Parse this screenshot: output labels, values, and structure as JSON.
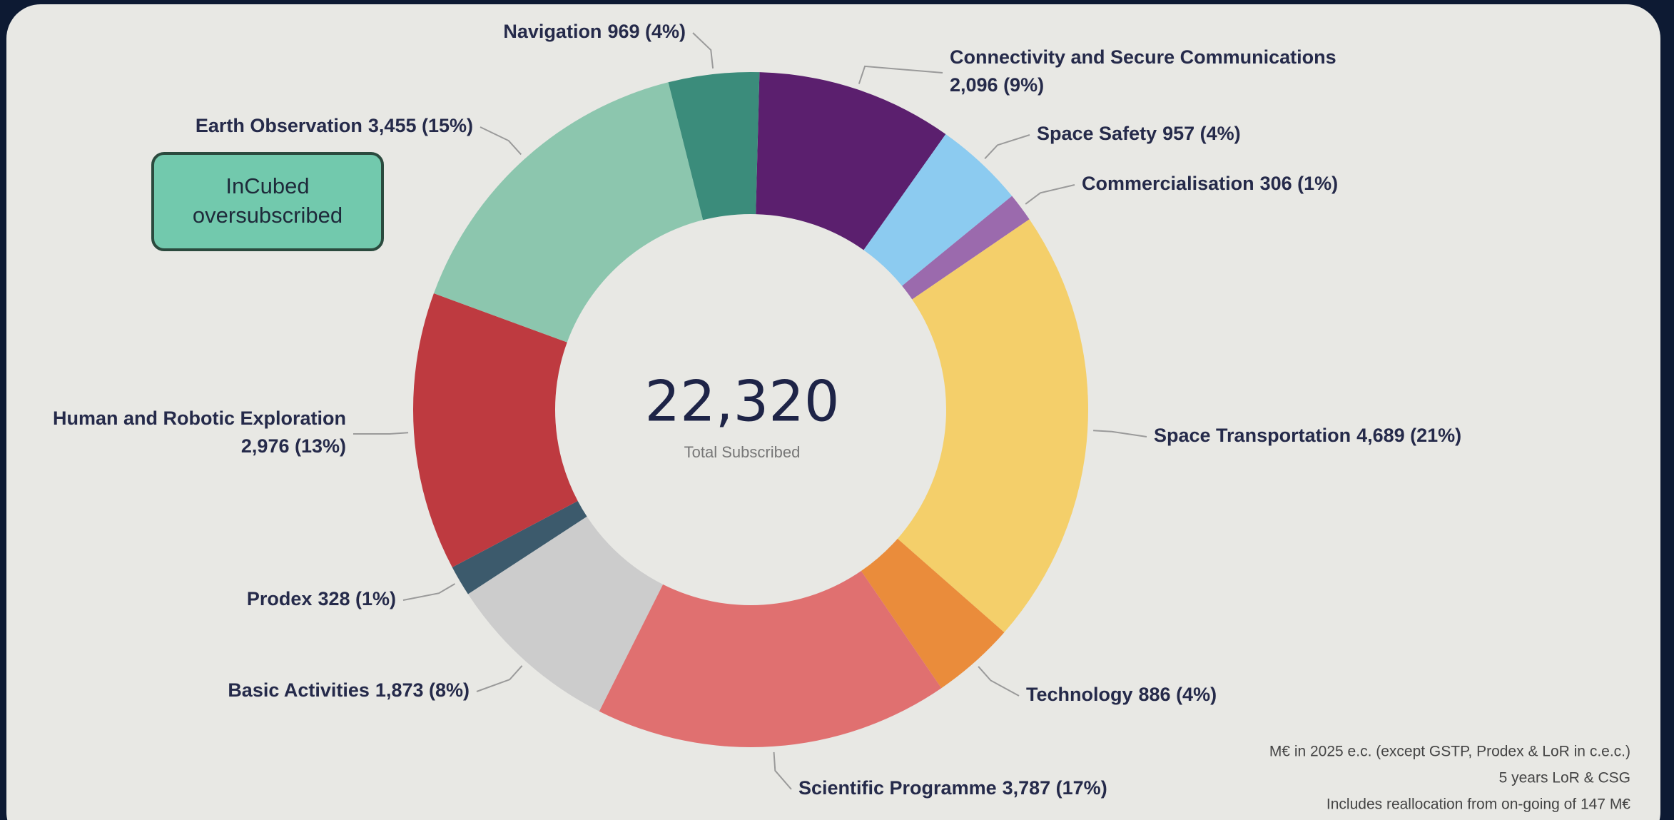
{
  "chart_data": {
    "type": "donut",
    "categories": [
      "Connectivity and Secure Communications",
      "Space Safety",
      "Commercialisation",
      "Space Transportation",
      "Technology",
      "Scientific Programme",
      "Basic Activities",
      "Prodex",
      "Human and Robotic Exploration",
      "Earth Observation",
      "Navigation"
    ],
    "values": [
      2096,
      957,
      306,
      4689,
      886,
      3787,
      1873,
      328,
      2976,
      3455,
      969
    ],
    "value_labels": [
      "2,096 (9%)",
      "957 (4%)",
      "306 (1%)",
      "4,689 (21%)",
      "886 (4%)",
      "3,787 (17%)",
      "1,873 (8%)",
      "328 (1%)",
      "2,976 (13%)",
      "3,455 (15%)",
      "969 (4%)"
    ],
    "colors": [
      "#5b1f6e",
      "#8ccbf0",
      "#9b6aad",
      "#f4cf6a",
      "#ea8c3b",
      "#e07070",
      "#cccccc",
      "#3c5a6c",
      "#be3a40",
      "#8cc6ae",
      "#3b8c7b"
    ],
    "center_total": {
      "value": 22320,
      "label": "22,320"
    },
    "center_label": "Total Subscribed",
    "annotation": [
      "InCubed",
      "oversubscribed"
    ],
    "notes": [
      "M€ in 2025 e.c. (except GSTP, Prodex & LoR in c.e.c.)",
      "5 years LoR & CSG",
      "Includes reallocation from on-going of 147 M€"
    ]
  }
}
